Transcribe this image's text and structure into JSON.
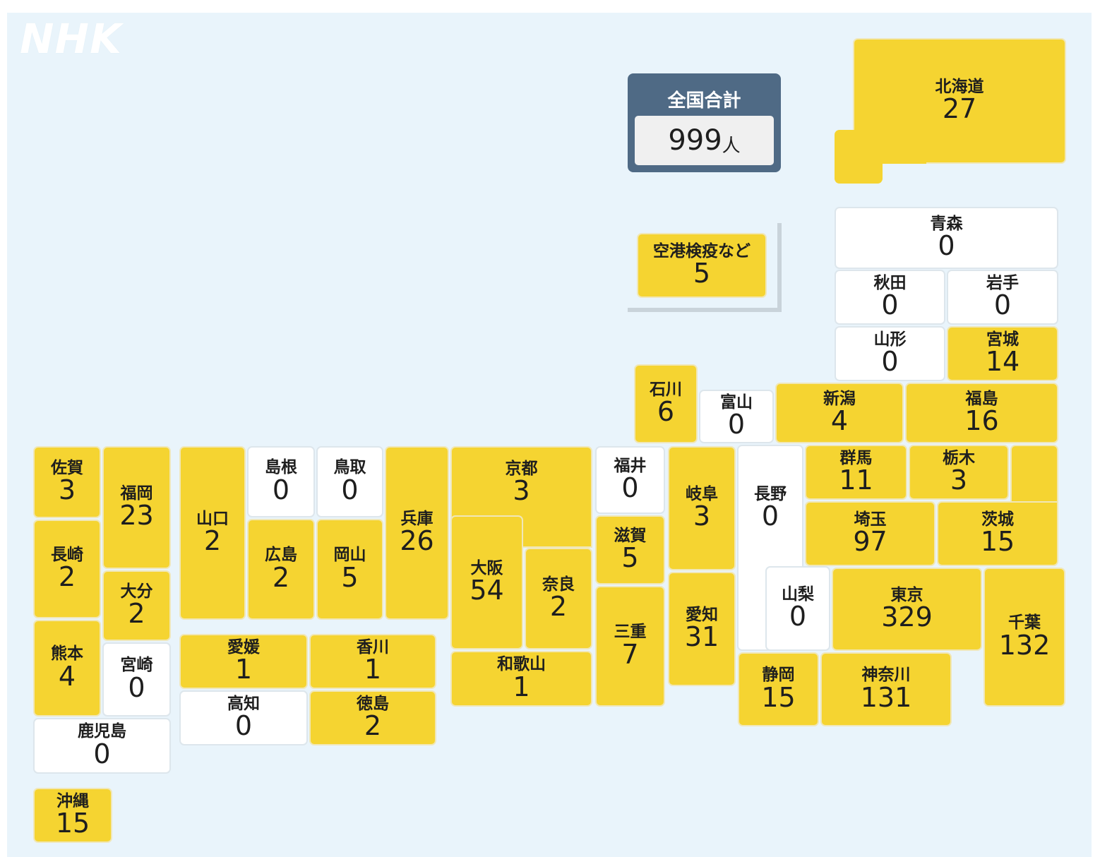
{
  "logo": "NHK",
  "total": {
    "label": "全国合計",
    "count": "999",
    "unit": "人"
  },
  "colors": {
    "background": "#e9f4fb",
    "has_cases": "#f5d431",
    "zero_cases": "#ffffff",
    "total_box": "#4f6a85"
  },
  "prefectures": {
    "hokkaido": {
      "name": "北海道",
      "count": "27"
    },
    "aomori": {
      "name": "青森",
      "count": "0"
    },
    "akita": {
      "name": "秋田",
      "count": "0"
    },
    "iwate": {
      "name": "岩手",
      "count": "0"
    },
    "yamagata": {
      "name": "山形",
      "count": "0"
    },
    "miyagi": {
      "name": "宮城",
      "count": "14"
    },
    "niigata": {
      "name": "新潟",
      "count": "4"
    },
    "fukushima": {
      "name": "福島",
      "count": "16"
    },
    "ishikawa": {
      "name": "石川",
      "count": "6"
    },
    "toyama": {
      "name": "富山",
      "count": "0"
    },
    "airport": {
      "name": "空港検疫など",
      "count": "5"
    },
    "saga": {
      "name": "佐賀",
      "count": "3"
    },
    "fukuoka": {
      "name": "福岡",
      "count": "23"
    },
    "nagasaki": {
      "name": "長崎",
      "count": "2"
    },
    "oita": {
      "name": "大分",
      "count": "2"
    },
    "kumamoto": {
      "name": "熊本",
      "count": "4"
    },
    "miyazaki": {
      "name": "宮崎",
      "count": "0"
    },
    "kagoshima": {
      "name": "鹿児島",
      "count": "0"
    },
    "okinawa": {
      "name": "沖縄",
      "count": "15"
    },
    "yamaguchi": {
      "name": "山口",
      "count": "2"
    },
    "shimane": {
      "name": "島根",
      "count": "0"
    },
    "tottori": {
      "name": "鳥取",
      "count": "0"
    },
    "hiroshima": {
      "name": "広島",
      "count": "2"
    },
    "okayama": {
      "name": "岡山",
      "count": "5"
    },
    "hyogo": {
      "name": "兵庫",
      "count": "26"
    },
    "ehime": {
      "name": "愛媛",
      "count": "1"
    },
    "kagawa": {
      "name": "香川",
      "count": "1"
    },
    "kochi": {
      "name": "高知",
      "count": "0"
    },
    "tokushima": {
      "name": "徳島",
      "count": "2"
    },
    "kyoto": {
      "name": "京都",
      "count": "3"
    },
    "osaka": {
      "name": "大阪",
      "count": "54"
    },
    "nara": {
      "name": "奈良",
      "count": "2"
    },
    "wakayama": {
      "name": "和歌山",
      "count": "1"
    },
    "fukui": {
      "name": "福井",
      "count": "0"
    },
    "shiga": {
      "name": "滋賀",
      "count": "5"
    },
    "mie": {
      "name": "三重",
      "count": "7"
    },
    "gifu": {
      "name": "岐阜",
      "count": "3"
    },
    "aichi": {
      "name": "愛知",
      "count": "31"
    },
    "nagano": {
      "name": "長野",
      "count": "0"
    },
    "yamanashi": {
      "name": "山梨",
      "count": "0"
    },
    "shizuoka": {
      "name": "静岡",
      "count": "15"
    },
    "gunma": {
      "name": "群馬",
      "count": "11"
    },
    "tochigi": {
      "name": "栃木",
      "count": "3"
    },
    "saitama": {
      "name": "埼玉",
      "count": "97"
    },
    "ibaraki": {
      "name": "茨城",
      "count": "15"
    },
    "tokyo": {
      "name": "東京",
      "count": "329"
    },
    "kanagawa": {
      "name": "神奈川",
      "count": "131"
    },
    "chiba": {
      "name": "千葉",
      "count": "132"
    }
  }
}
